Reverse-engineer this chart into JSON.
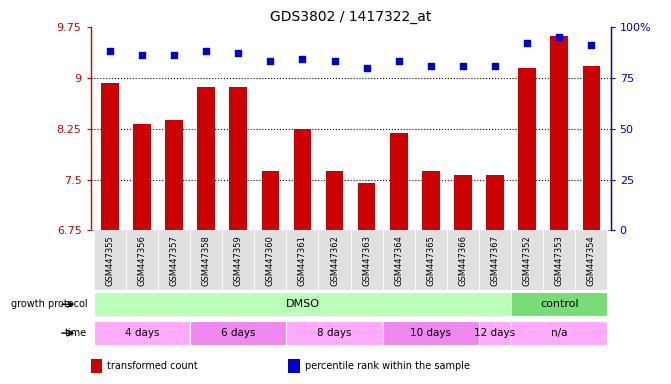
{
  "title": "GDS3802 / 1417322_at",
  "samples": [
    "GSM447355",
    "GSM447356",
    "GSM447357",
    "GSM447358",
    "GSM447359",
    "GSM447360",
    "GSM447361",
    "GSM447362",
    "GSM447363",
    "GSM447364",
    "GSM447365",
    "GSM447366",
    "GSM447367",
    "GSM447352",
    "GSM447353",
    "GSM447354"
  ],
  "bar_values": [
    8.92,
    8.32,
    8.38,
    8.87,
    8.86,
    7.63,
    8.24,
    7.63,
    7.45,
    8.19,
    7.63,
    7.57,
    7.57,
    9.15,
    9.62,
    9.18
  ],
  "dot_values": [
    88,
    86,
    86,
    88,
    87,
    83,
    84,
    83,
    80,
    83,
    81,
    81,
    81,
    92,
    95,
    91
  ],
  "bar_color": "#cc0000",
  "dot_color": "#0000cc",
  "ylim_left": [
    6.75,
    9.75
  ],
  "ylim_right": [
    0,
    100
  ],
  "yticks_left": [
    6.75,
    7.5,
    8.25,
    9.0,
    9.75
  ],
  "yticks_right": [
    0,
    25,
    50,
    75,
    100
  ],
  "ytick_labels_left": [
    "6.75",
    "7.5",
    "8.25",
    "9",
    "9.75"
  ],
  "ytick_labels_right": [
    "0",
    "25",
    "50",
    "75",
    "100%"
  ],
  "hlines": [
    7.5,
    8.25,
    9.0
  ],
  "growth_protocol_groups": [
    {
      "label": "DMSO",
      "start": 0,
      "end": 12,
      "color": "#bbffbb"
    },
    {
      "label": "control",
      "start": 13,
      "end": 15,
      "color": "#77dd77"
    }
  ],
  "time_groups": [
    {
      "label": "4 days",
      "start": 0,
      "end": 2,
      "color": "#ffaaff"
    },
    {
      "label": "6 days",
      "start": 3,
      "end": 5,
      "color": "#ee88ee"
    },
    {
      "label": "8 days",
      "start": 6,
      "end": 8,
      "color": "#ffaaff"
    },
    {
      "label": "10 days",
      "start": 9,
      "end": 11,
      "color": "#ee88ee"
    },
    {
      "label": "12 days",
      "start": 12,
      "end": 12,
      "color": "#ffaaff"
    },
    {
      "label": "n/a",
      "start": 13,
      "end": 15,
      "color": "#ffaaff"
    }
  ],
  "legend_items": [
    {
      "label": "transformed count",
      "color": "#cc0000"
    },
    {
      "label": "percentile rank within the sample",
      "color": "#0000cc"
    }
  ],
  "sample_box_color": "#e0e0e0",
  "background_color": "#ffffff"
}
